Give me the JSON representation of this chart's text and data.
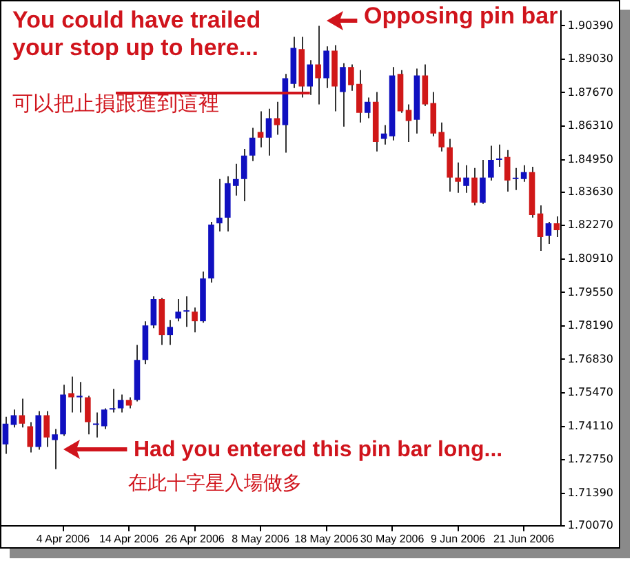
{
  "chart_data": {
    "type": "candlestick",
    "categories": [
      null,
      null,
      null,
      null,
      null,
      null,
      null,
      "4 Apr 2006",
      null,
      null,
      null,
      null,
      null,
      null,
      null,
      "14 Apr 2006",
      null,
      null,
      null,
      null,
      null,
      null,
      null,
      "26 Apr 2006",
      null,
      null,
      null,
      null,
      null,
      null,
      null,
      "8 May 2006",
      null,
      null,
      null,
      null,
      null,
      null,
      null,
      "18 May 2006",
      null,
      null,
      null,
      null,
      null,
      null,
      null,
      "30 May 2006",
      null,
      null,
      null,
      null,
      null,
      null,
      null,
      "9 Jun 2006",
      null,
      null,
      null,
      null,
      null,
      null,
      null,
      "21 Jun 2006",
      null,
      null,
      null,
      null
    ],
    "ohlc": [
      [
        1.7338,
        1.745,
        1.7299,
        1.7422
      ],
      [
        1.7417,
        1.7479,
        1.7406,
        1.7456
      ],
      [
        1.7456,
        1.7523,
        1.7406,
        1.7422
      ],
      [
        1.7411,
        1.7428,
        1.7305,
        1.7327
      ],
      [
        1.7327,
        1.7473,
        1.7316,
        1.7456
      ],
      [
        1.7456,
        1.7473,
        1.7327,
        1.7366
      ],
      [
        1.7355,
        1.74,
        1.7237,
        1.7378
      ],
      [
        1.7378,
        1.758,
        1.7372,
        1.754
      ],
      [
        1.7546,
        1.7613,
        1.7467,
        1.7529
      ],
      [
        1.7529,
        1.7591,
        1.7467,
        1.7535
      ],
      [
        1.7529,
        1.7535,
        1.7378,
        1.7428
      ],
      [
        1.7417,
        1.7467,
        1.7366,
        1.7422
      ],
      [
        1.7411,
        1.7484,
        1.74,
        1.7479
      ],
      [
        1.7479,
        1.7563,
        1.7467,
        1.7484
      ],
      [
        1.7484,
        1.754,
        1.7467,
        1.7518
      ],
      [
        1.7518,
        1.7529,
        1.7484,
        1.7495
      ],
      [
        1.7518,
        1.7742,
        1.7512,
        1.7681
      ],
      [
        1.7681,
        1.7838,
        1.7664,
        1.7821
      ],
      [
        1.7821,
        1.7939,
        1.781,
        1.7928
      ],
      [
        1.7928,
        1.7933,
        1.7742,
        1.7782
      ],
      [
        1.7782,
        1.7843,
        1.7742,
        1.7815
      ],
      [
        1.7849,
        1.7928,
        1.7838,
        1.7877
      ],
      [
        1.7877,
        1.7939,
        1.7815,
        1.788
      ],
      [
        1.7877,
        1.7894,
        1.7793,
        1.7838
      ],
      [
        1.7838,
        1.804,
        1.7832,
        1.8012
      ],
      [
        1.8012,
        1.8242,
        1.7995,
        1.8231
      ],
      [
        1.8236,
        1.8416,
        1.8203,
        1.8259
      ],
      [
        1.8259,
        1.8427,
        1.8203,
        1.8399
      ],
      [
        1.8388,
        1.8478,
        1.8349,
        1.8416
      ],
      [
        1.8416,
        1.8539,
        1.8326,
        1.8511
      ],
      [
        1.8511,
        1.8624,
        1.8489,
        1.8584
      ],
      [
        1.8607,
        1.8691,
        1.8545,
        1.8584
      ],
      [
        1.8584,
        1.8702,
        1.8511,
        1.8663
      ],
      [
        1.8663,
        1.873,
        1.8596,
        1.8635
      ],
      [
        1.8635,
        1.8843,
        1.8523,
        1.8826
      ],
      [
        1.8803,
        1.8994,
        1.8786,
        1.8949
      ],
      [
        1.8944,
        1.8994,
        1.8747,
        1.8792
      ],
      [
        1.8792,
        1.8899,
        1.8758,
        1.8882
      ],
      [
        1.8882,
        1.9039,
        1.8719,
        1.8826
      ],
      [
        1.8826,
        1.8955,
        1.8786,
        1.8938
      ],
      [
        1.8938,
        1.896,
        1.8691,
        1.8792
      ],
      [
        1.877,
        1.8887,
        1.8629,
        1.8871
      ],
      [
        1.8871,
        1.8882,
        1.8775,
        1.8798
      ],
      [
        1.8803,
        1.8859,
        1.8646,
        1.8685
      ],
      [
        1.8685,
        1.8747,
        1.8663,
        1.873
      ],
      [
        1.873,
        1.877,
        1.8528,
        1.8567
      ],
      [
        1.8579,
        1.8635,
        1.8556,
        1.8601
      ],
      [
        1.859,
        1.8871,
        1.8573,
        1.8837
      ],
      [
        1.8843,
        1.8859,
        1.8685,
        1.8691
      ],
      [
        1.8697,
        1.8719,
        1.8567,
        1.8652
      ],
      [
        1.8657,
        1.8865,
        1.8601,
        1.8837
      ],
      [
        1.8837,
        1.8882,
        1.8713,
        1.8719
      ],
      [
        1.8725,
        1.877,
        1.859,
        1.8601
      ],
      [
        1.8607,
        1.8646,
        1.8528,
        1.8545
      ],
      [
        1.8545,
        1.8579,
        1.8365,
        1.8422
      ],
      [
        1.8422,
        1.8483,
        1.836,
        1.8405
      ],
      [
        1.8388,
        1.8472,
        1.836,
        1.8422
      ],
      [
        1.8422,
        1.8461,
        1.8309,
        1.832
      ],
      [
        1.832,
        1.8494,
        1.8315,
        1.8422
      ],
      [
        1.8422,
        1.8551,
        1.841,
        1.8494
      ],
      [
        1.8494,
        1.8556,
        1.8466,
        1.8497
      ],
      [
        1.8506,
        1.8534,
        1.8365,
        1.841
      ],
      [
        1.8416,
        1.8461,
        1.8371,
        1.8419
      ],
      [
        1.8416,
        1.8472,
        1.8405,
        1.8444
      ],
      [
        1.8444,
        1.8466,
        1.8259,
        1.827
      ],
      [
        1.8276,
        1.8309,
        1.8124,
        1.818
      ],
      [
        1.8186,
        1.8242,
        1.8152,
        1.8236
      ],
      [
        1.8236,
        1.8264,
        1.818,
        1.8208
      ]
    ],
    "colors": [
      "#1010c0",
      "#1010c0",
      "#d01818",
      "#d01818",
      "#1010c0",
      "#d01818",
      "#1010c0",
      "#1010c0",
      "#d01818",
      "#1010c0",
      "#d01818",
      "#1010c0",
      "#1010c0",
      "#1010c0",
      "#1010c0",
      "#d01818",
      "#1010c0",
      "#1010c0",
      "#1010c0",
      "#d01818",
      "#1010c0",
      "#1010c0",
      "#1010c0",
      "#d01818",
      "#1010c0",
      "#1010c0",
      "#1010c0",
      "#1010c0",
      "#1010c0",
      "#1010c0",
      "#1010c0",
      "#d01818",
      "#1010c0",
      "#d01818",
      "#1010c0",
      "#1010c0",
      "#d01818",
      "#1010c0",
      "#d01818",
      "#1010c0",
      "#d01818",
      "#1010c0",
      "#d01818",
      "#d01818",
      "#1010c0",
      "#d01818",
      "#1010c0",
      "#1010c0",
      "#d01818",
      "#d01818",
      "#1010c0",
      "#d01818",
      "#d01818",
      "#d01818",
      "#d01818",
      "#d01818",
      "#1010c0",
      "#d01818",
      "#1010c0",
      "#1010c0",
      "#1010c0",
      "#d01818",
      "#1010c0",
      "#1010c0",
      "#d01818",
      "#d01818",
      "#1010c0",
      "#d01818"
    ],
    "ref_lines": [
      {
        "axis": "y",
        "value": 1.877,
        "color": "#d0141c"
      }
    ],
    "ylim": [
      1.7007,
      1.91
    ],
    "yticks": [
      {
        "value": 1.7007,
        "label": "1.70070"
      },
      {
        "value": 1.7139,
        "label": "1.71390"
      },
      {
        "value": 1.7275,
        "label": "1.72750"
      },
      {
        "value": 1.7411,
        "label": "1.74110"
      },
      {
        "value": 1.7547,
        "label": "1.75470"
      },
      {
        "value": 1.7683,
        "label": "1.76830"
      },
      {
        "value": 1.7819,
        "label": "1.78190"
      },
      {
        "value": 1.7955,
        "label": "1.79550"
      },
      {
        "value": 1.8091,
        "label": "1.80910"
      },
      {
        "value": 1.8227,
        "label": "1.82270"
      },
      {
        "value": 1.8363,
        "label": "1.83630"
      },
      {
        "value": 1.8495,
        "label": "1.84950"
      },
      {
        "value": 1.8631,
        "label": "1.86310"
      },
      {
        "value": 1.8767,
        "label": "1.87670"
      },
      {
        "value": 1.8903,
        "label": "1.89030"
      },
      {
        "value": 1.9039,
        "label": "1.90390"
      }
    ],
    "annotations": [
      "You could have trailed your stop up to here...",
      "可以把止損跟進到這裡",
      "Opposing pin bar",
      "Had you entered this pin bar long...",
      "在此十字星入場做多"
    ]
  }
}
